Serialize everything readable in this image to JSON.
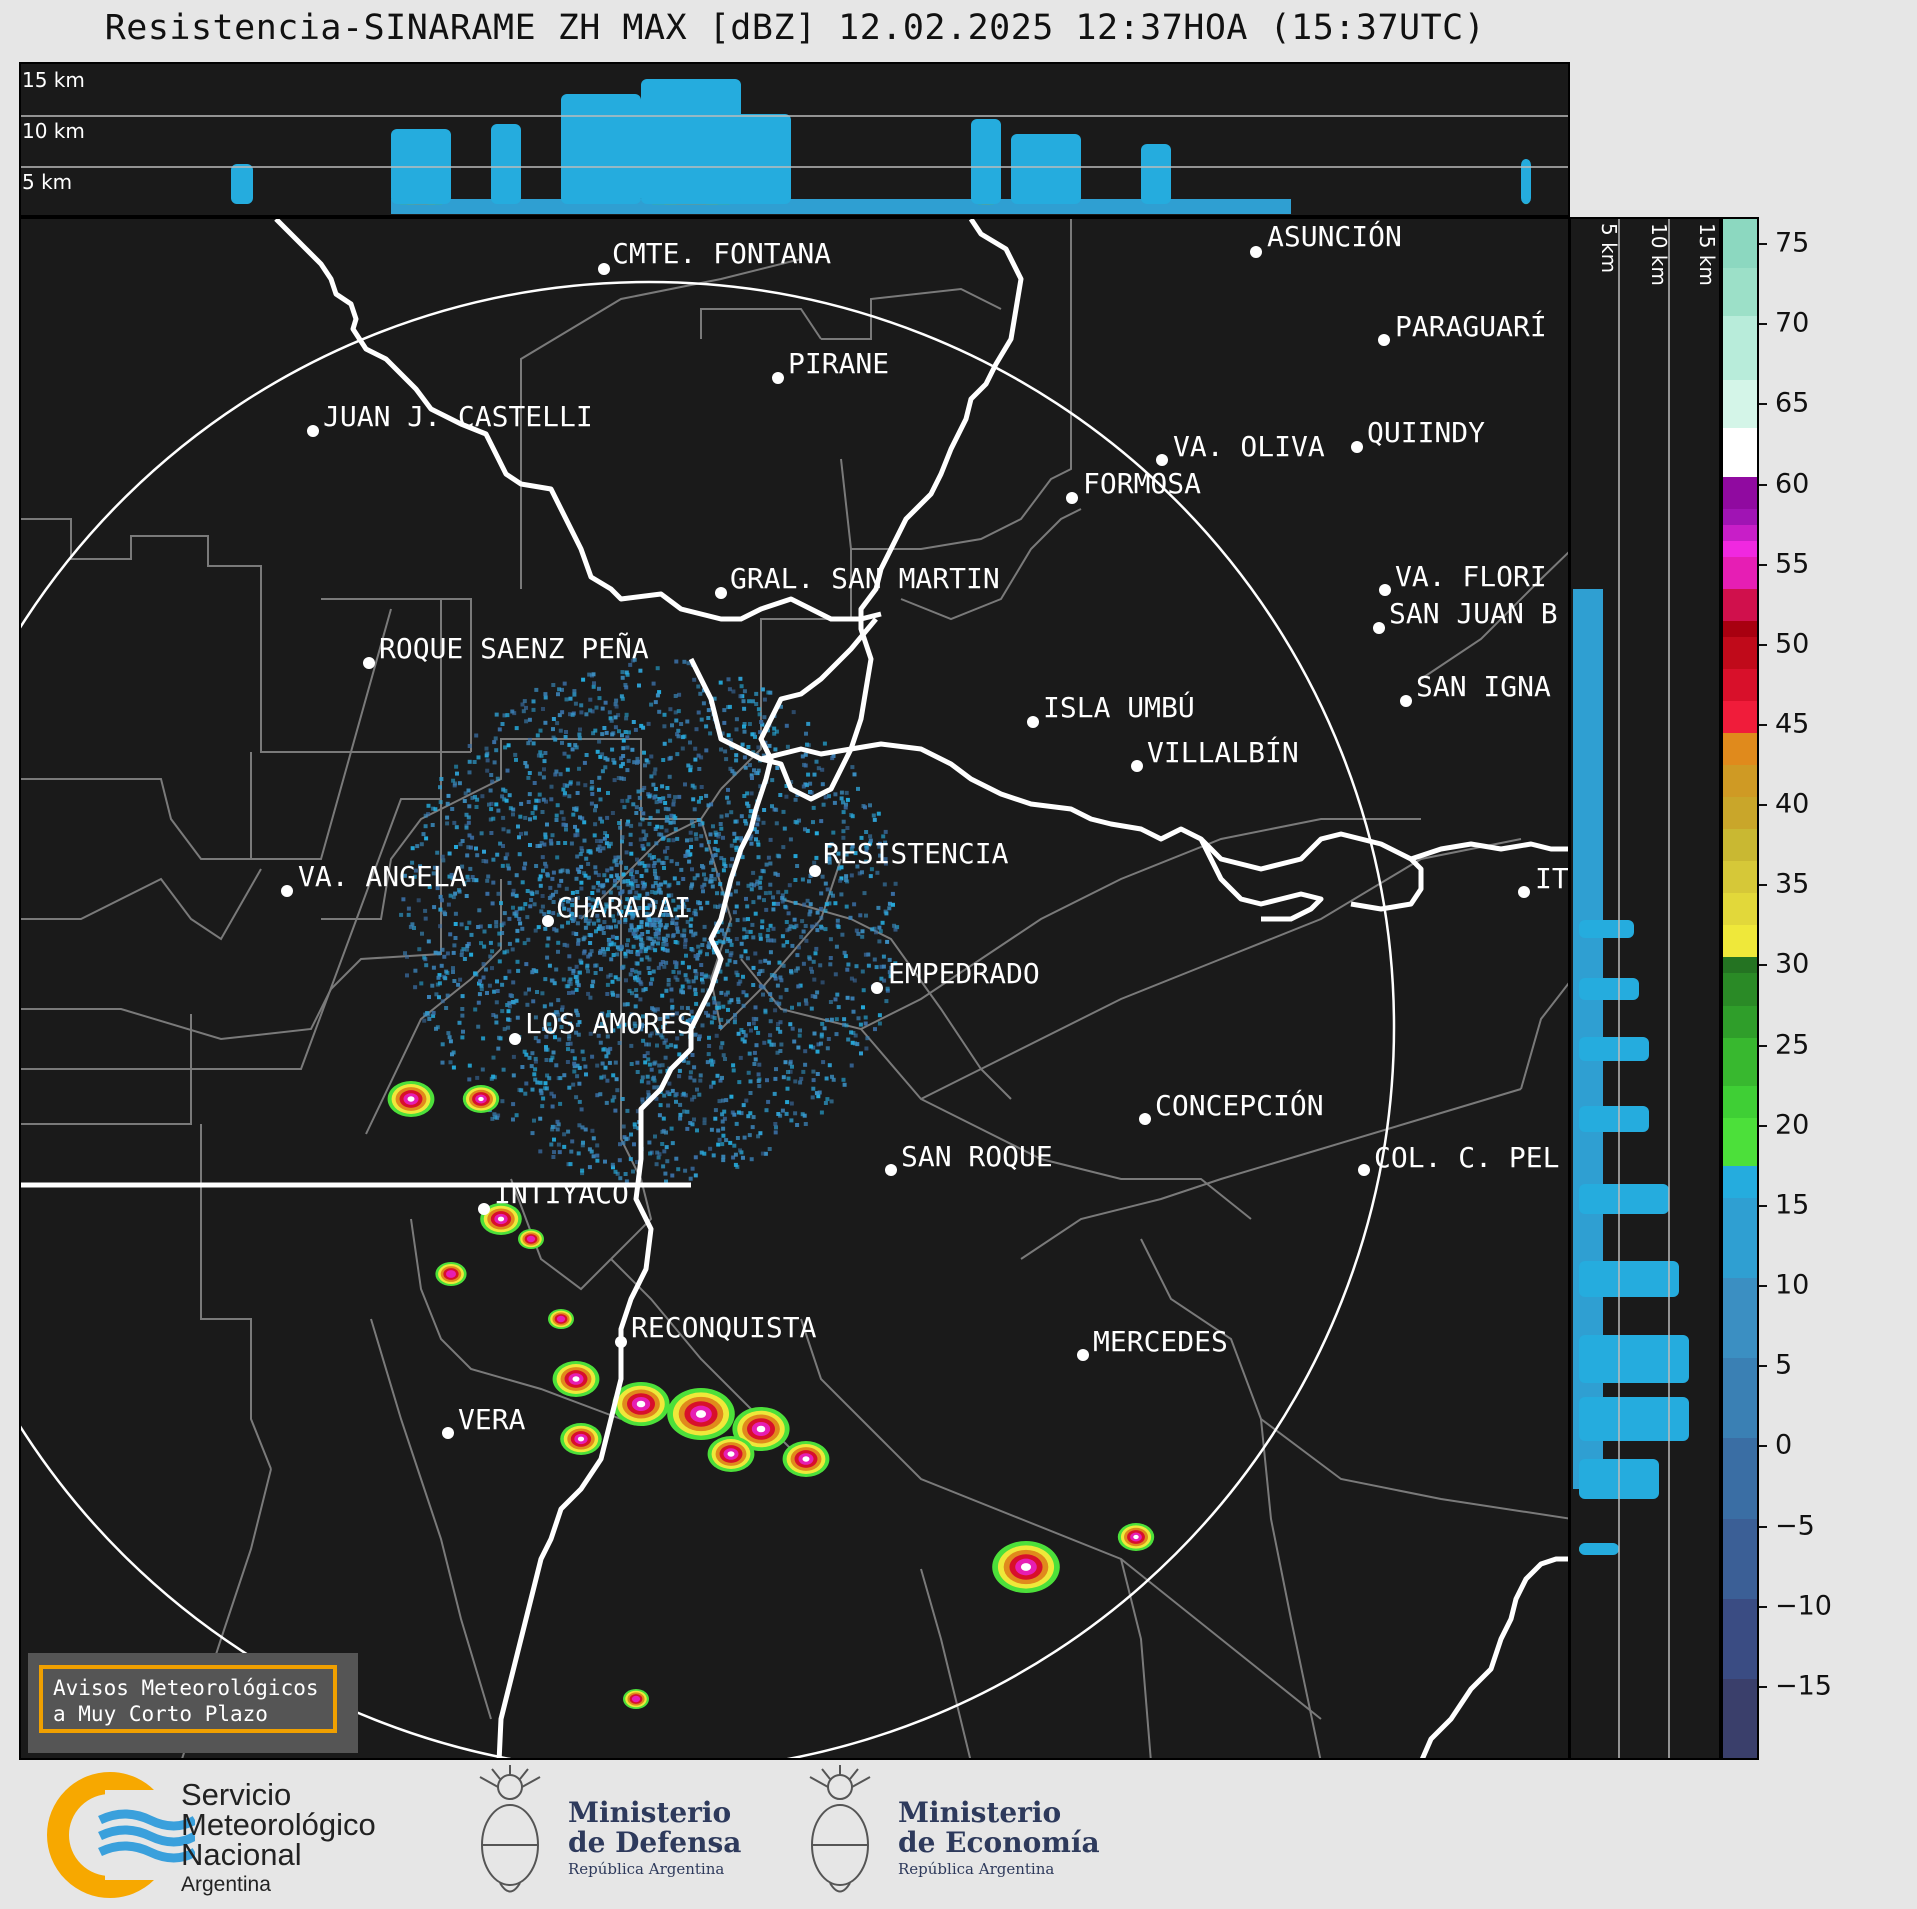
{
  "title": "Resistencia-SINARAME ZH MAX [dBZ] 12.02.2025 12:37HOA (15:37UTC)",
  "height_panel": {
    "labels": [
      "15 km",
      "10 km",
      "5 km"
    ]
  },
  "side_panel": {
    "labels": [
      "5 km",
      "10 km",
      "15 km"
    ]
  },
  "colorbar": {
    "ticks": [
      "75",
      "70",
      "65",
      "60",
      "55",
      "50",
      "45",
      "40",
      "35",
      "30",
      "25",
      "20",
      "15",
      "10",
      "5",
      "0",
      "−5",
      "−10",
      "−15"
    ],
    "min": -19.5,
    "max": 76.5,
    "colors": {
      "blue": [
        "#3a3f6b",
        "#3a4c83",
        "#3b5f96",
        "#3a6ea4",
        "#3a80b4",
        "#3b8fc2",
        "#2f9fd2",
        "#25acde"
      ],
      "green": [
        "#4ce03a",
        "#3fcf35",
        "#38b82f",
        "#2f9e2a",
        "#2a8a26",
        "#247322"
      ],
      "yellow": [
        "#efe83a",
        "#e2d83a",
        "#d6c838",
        "#c9b832",
        "#c9a62a",
        "#cf9a24",
        "#e08a1c"
      ],
      "red": [
        "#f01c3a",
        "#d8102a",
        "#c00a1a",
        "#a80010"
      ],
      "magenta": [
        "#d0104c",
        "#e61eb4",
        "#f028e0",
        "#c81ec8",
        "#a014b4",
        "#900aa0"
      ],
      "high": [
        "#ffffff",
        "#d4f5e8",
        "#b8ecda",
        "#9ce0c8",
        "#8cd8c0",
        "#7ccfb4"
      ]
    }
  },
  "cities": [
    {
      "name": "CMTE. FONTANA"
    },
    {
      "name": "ASUNCIÓN"
    },
    {
      "name": "PARAGUARÍ"
    },
    {
      "name": "PIRANE"
    },
    {
      "name": "JUAN J. CASTELLI"
    },
    {
      "name": "VA. OLIVA"
    },
    {
      "name": "QUIINDY"
    },
    {
      "name": "FORMOSA"
    },
    {
      "name": "VA. FLORI"
    },
    {
      "name": "GRAL. SAN MARTIN"
    },
    {
      "name": "SAN JUAN B"
    },
    {
      "name": "ROQUE SAENZ PEÑA"
    },
    {
      "name": "SAN IGNA"
    },
    {
      "name": "ISLA UMBÚ"
    },
    {
      "name": "VILLALBÍN"
    },
    {
      "name": "RESISTENCIA"
    },
    {
      "name": "VA. ANGELA"
    },
    {
      "name": "CHARADAI"
    },
    {
      "name": "IT"
    },
    {
      "name": "EMPEDRADO"
    },
    {
      "name": "LOS AMORES"
    },
    {
      "name": "CONCEPCIÓN"
    },
    {
      "name": "COL. C. PEL"
    },
    {
      "name": "SAN ROQUE"
    },
    {
      "name": "INTIYACO"
    },
    {
      "name": "RECONQUISTA"
    },
    {
      "name": "MERCEDES"
    },
    {
      "name": "VERA"
    }
  ],
  "avisos": {
    "line1": "Avisos Meteorológicos",
    "line2": "a Muy Corto Plazo"
  },
  "footer": {
    "smn": {
      "line1": "Servicio",
      "line2": "Meteorológico",
      "line3": "Nacional",
      "line4": "Argentina"
    },
    "defensa": {
      "line1": "Ministerio",
      "line2": "de Defensa",
      "line3": "República Argentina"
    },
    "economia": {
      "line1": "Ministerio",
      "line2": "de Economía",
      "line3": "República Argentina"
    }
  }
}
